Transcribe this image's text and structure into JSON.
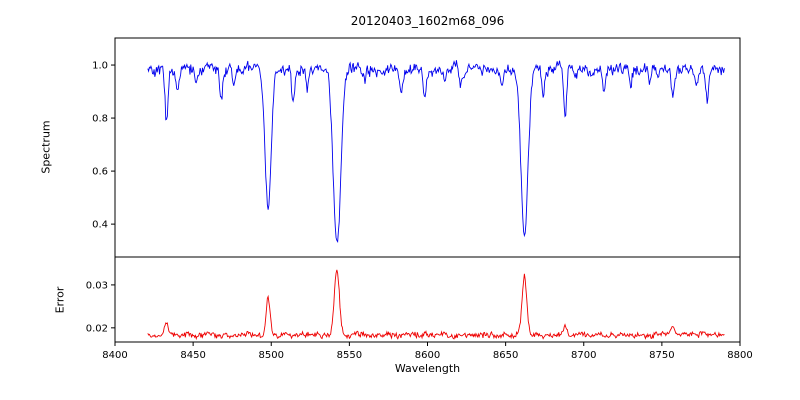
{
  "chart_data": {
    "type": "line",
    "title": "20120403_1602m68_096",
    "xlabel": "Wavelength",
    "xlim": [
      8400,
      8800
    ],
    "xticks": [
      8400,
      8450,
      8500,
      8550,
      8600,
      8650,
      8700,
      8750,
      8800
    ],
    "x_data_range": [
      8421,
      8790
    ],
    "sample_step": 0.5,
    "noise_seed": 42,
    "grid": false,
    "legend": "none",
    "panels": [
      {
        "name": "spectrum",
        "ylabel": "Spectrum",
        "ylim": [
          0.276,
          1.102
        ],
        "yticks": [
          0.4,
          0.6,
          0.8,
          1.0
        ],
        "color": "#0000ee",
        "continuum": 0.985
      },
      {
        "name": "error",
        "ylabel": "Error",
        "ylim": [
          0.0167,
          0.0365
        ],
        "yticks": [
          0.02,
          0.03
        ],
        "color": "#ee0000",
        "baseline": 0.0183
      }
    ],
    "absorption_lines_strong": [
      [
        8498.0,
        0.46,
        2.0
      ],
      [
        8542.1,
        0.33,
        2.4
      ],
      [
        8662.1,
        0.36,
        2.2
      ]
    ],
    "absorption_lines_minor": [
      [
        8433,
        0.79,
        1.0
      ],
      [
        8440,
        0.93,
        0.8
      ],
      [
        8452,
        0.95,
        0.8
      ],
      [
        8468,
        0.88,
        0.9
      ],
      [
        8476,
        0.93,
        0.8
      ],
      [
        8514,
        0.87,
        0.9
      ],
      [
        8523,
        0.93,
        0.8
      ],
      [
        8560,
        0.95,
        0.8
      ],
      [
        8583,
        0.93,
        0.8
      ],
      [
        8598,
        0.9,
        0.9
      ],
      [
        8611,
        0.95,
        0.8
      ],
      [
        8621,
        0.93,
        0.8
      ],
      [
        8648,
        0.94,
        0.8
      ],
      [
        8674,
        0.92,
        0.8
      ],
      [
        8688,
        0.81,
        1.0
      ],
      [
        8713,
        0.92,
        0.9
      ],
      [
        8730,
        0.94,
        0.8
      ],
      [
        8742,
        0.95,
        0.8
      ],
      [
        8757,
        0.92,
        0.9
      ],
      [
        8772,
        0.94,
        0.8
      ],
      [
        8779,
        0.88,
        0.9
      ]
    ],
    "error_peaks": [
      [
        8433,
        0.003,
        1.2
      ],
      [
        8498,
        0.0085,
        1.3
      ],
      [
        8542,
        0.015,
        1.6
      ],
      [
        8662,
        0.014,
        1.5
      ],
      [
        8688,
        0.0022,
        1.1
      ],
      [
        8757,
        0.002,
        1.0
      ]
    ]
  }
}
